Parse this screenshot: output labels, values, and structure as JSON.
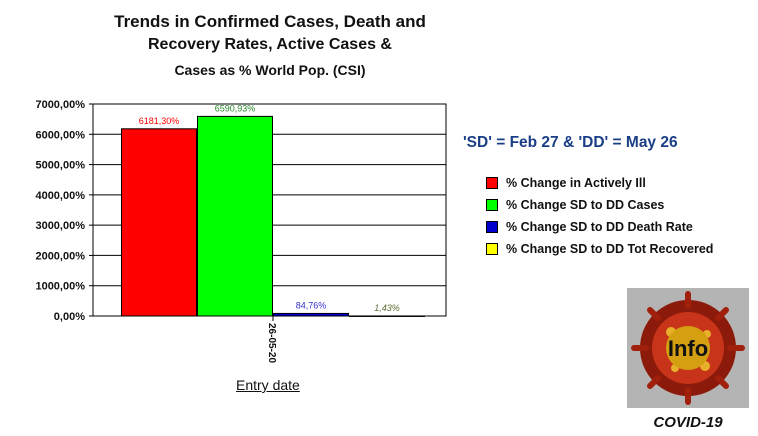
{
  "title": {
    "line1": "Trends in Confirmed Cases, Death and",
    "line2": "Recovery Rates, Active Cases &",
    "line3": "Cases as % World Pop. (CSI)"
  },
  "note": "'SD' = Feb 27 & 'DD' = May 26",
  "logo": {
    "text": "Info",
    "caption": "COVID-19"
  },
  "chart_data": {
    "type": "bar",
    "categories": [
      "26-05-20"
    ],
    "series": [
      {
        "name": "% Change in Actively Ill",
        "values": [
          6181.3
        ],
        "label": "6181,30%",
        "color": "#ff0000",
        "label_color": "#ff0000"
      },
      {
        "name": "% Change SD to DD Cases",
        "values": [
          6590.93
        ],
        "label": "6590,93%",
        "color": "#00ff00",
        "label_color": "#2a8a2a"
      },
      {
        "name": "% Change SD to DD Death Rate",
        "values": [
          84.76
        ],
        "label": "84,76%",
        "color": "#0000cc",
        "label_color": "#3333cc"
      },
      {
        "name": "% Change SD to DD Tot Recovered",
        "values": [
          1.43
        ],
        "label": "1,43%",
        "color": "#ffff00",
        "label_color": "#556b2f"
      }
    ],
    "xlabel": "Entry date",
    "ylabel": "",
    "ylim": [
      0,
      7000
    ],
    "yticks": [
      "0,00%",
      "1000,00%",
      "2000,00%",
      "3000,00%",
      "4000,00%",
      "5000,00%",
      "6000,00%",
      "7000,00%"
    ],
    "grid": true,
    "legend_position": "right"
  }
}
